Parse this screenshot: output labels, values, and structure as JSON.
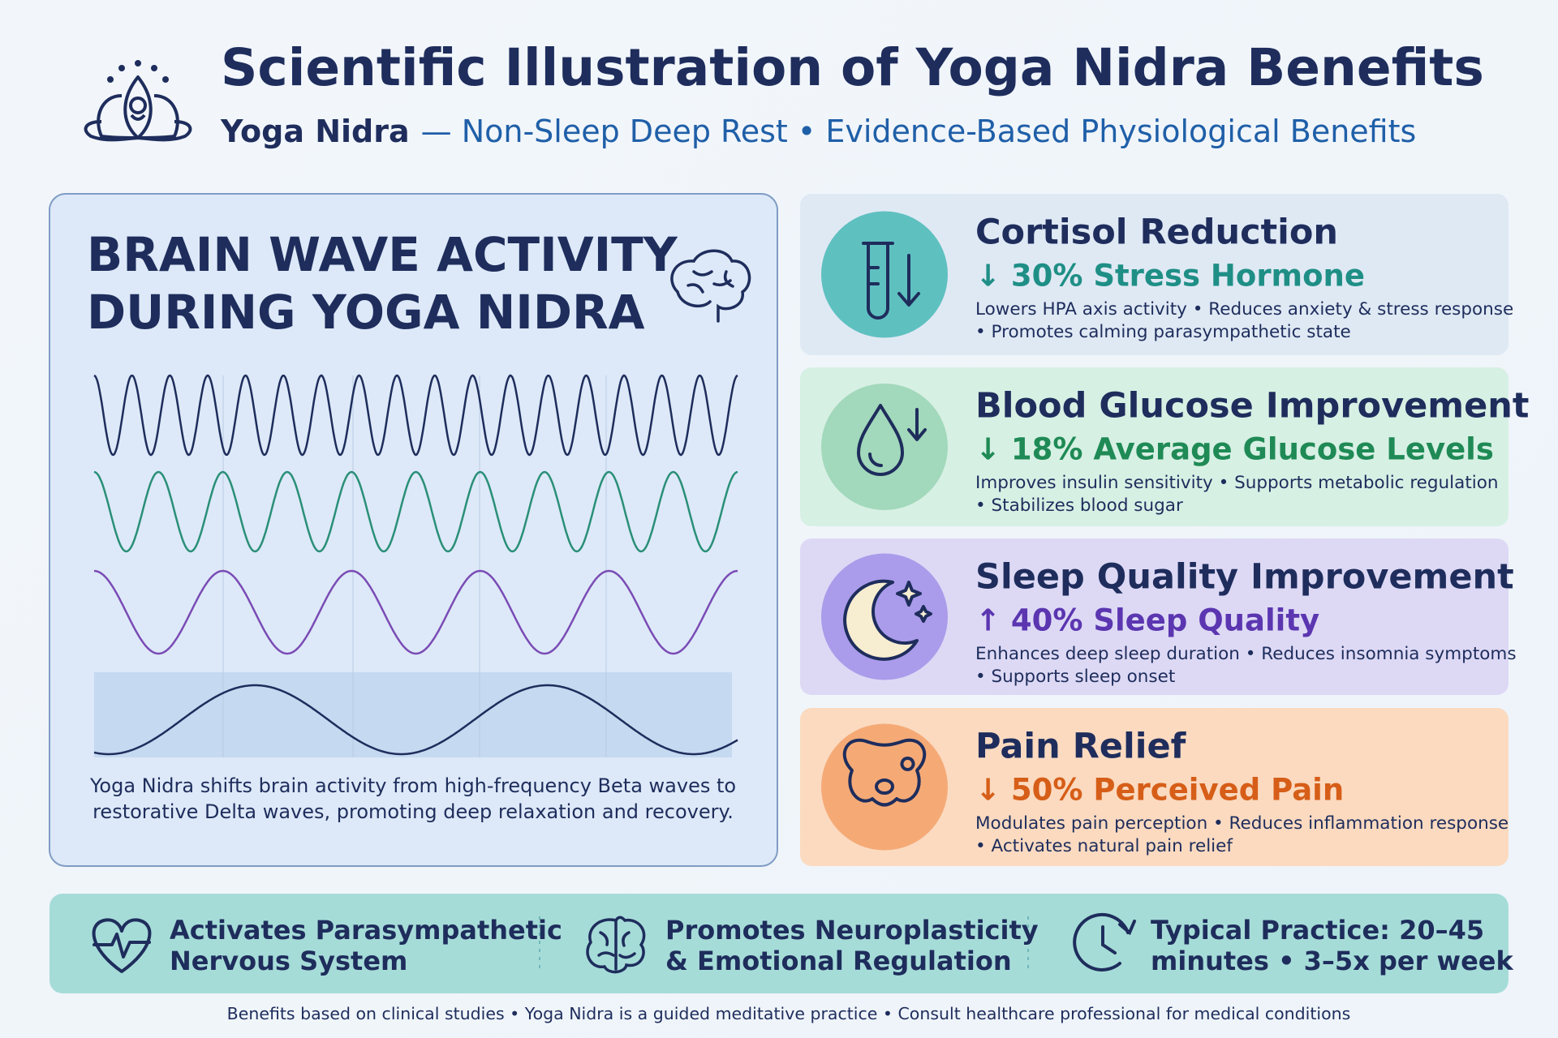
{
  "header": {
    "title": "Scientific Illustration of Yoga Nidra Benefits",
    "subtitle_lead": "Yoga Nidra",
    "subtitle_rest": "— Non-Sleep Deep Rest • Evidence-Based Physiological Benefits"
  },
  "brain_panel": {
    "title_lines": [
      "BRAIN WAVE ACTIVITY",
      "DURING YOGA NIDRA"
    ],
    "caption_lines": [
      "Yoga Nidra shifts brain activity from high-frequency Beta waves to",
      "restorative Delta waves, promoting deep relaxation and recovery."
    ]
  },
  "benefits": [
    {
      "title": "Cortisol Reduction",
      "stat": "↓ 30% Stress Hormone",
      "desc": [
        "Lowers HPA axis activity • Reduces anxiety & stress response",
        "• Promotes calming parasympathetic state"
      ]
    },
    {
      "title": "Blood Glucose Improvement",
      "stat": "↓ 18% Average Glucose Levels",
      "desc": [
        "Improves insulin sensitivity • Supports metabolic regulation",
        "• Stabilizes blood sugar"
      ]
    },
    {
      "title": "Sleep Quality Improvement",
      "stat": "↑ 40% Sleep Quality",
      "desc": [
        "Enhances deep sleep duration • Reduces insomnia symptoms",
        "• Supports sleep onset"
      ]
    },
    {
      "title": "Pain Relief",
      "stat": "↓ 50% Perceived Pain",
      "desc": [
        "Modulates pain perception • Reduces inflammation response",
        "• Activates natural pain relief"
      ]
    }
  ],
  "footer_items": [
    [
      "Activates Parasympathetic",
      "Nervous System"
    ],
    [
      "Promotes Neuroplasticity",
      "& Emotional Regulation"
    ],
    [
      "Typical Practice: 20–45",
      "minutes • 3–5x per week"
    ]
  ],
  "disclaimer": "Benefits based on clinical studies • Yoga Nidra is a guided meditative practice • Consult healthcare professional for medical conditions"
}
